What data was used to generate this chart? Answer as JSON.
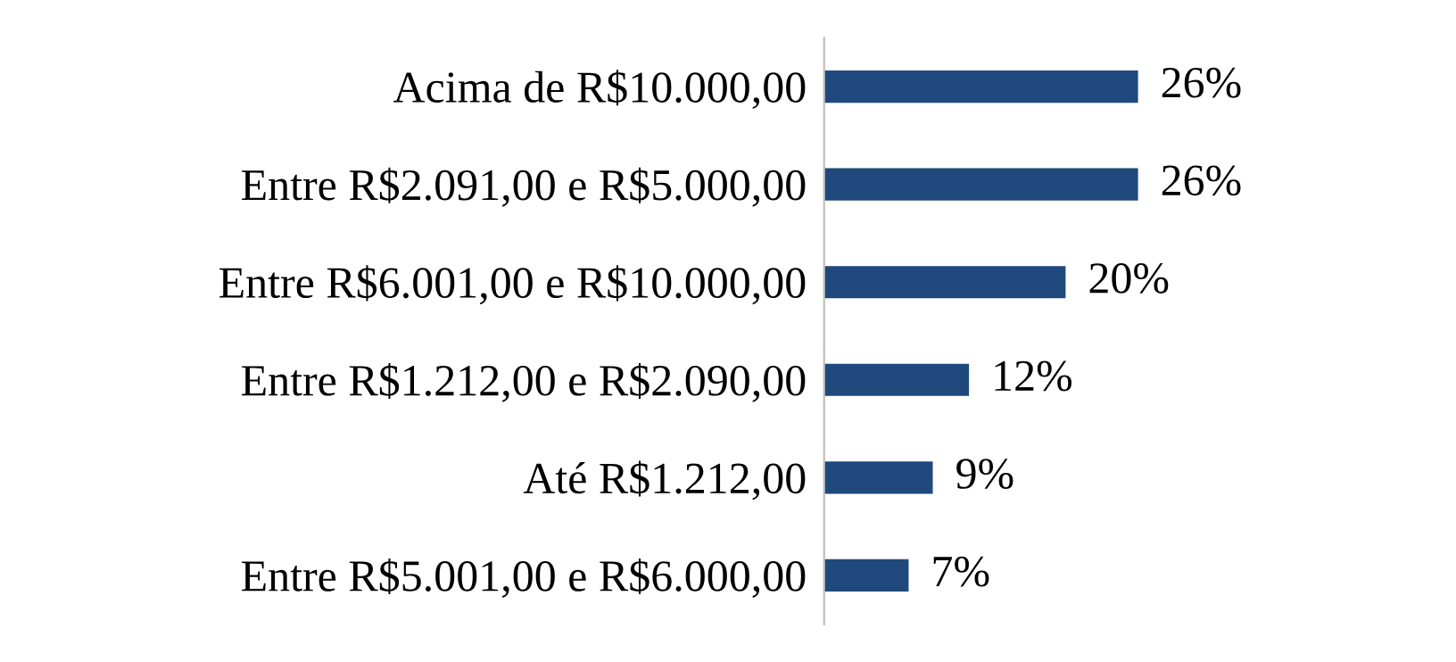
{
  "chart_data": {
    "type": "bar",
    "orientation": "horizontal",
    "categories": [
      "Acima de R$10.000,00",
      "Entre R$2.091,00 e R$5.000,00",
      "Entre R$6.001,00 e R$10.000,00",
      "Entre R$1.212,00 e R$2.090,00",
      "Até R$1.212,00",
      "Entre R$5.001,00 e R$6.000,00"
    ],
    "values": [
      26,
      26,
      20,
      12,
      9,
      7
    ],
    "value_labels": [
      "26%",
      "26%",
      "20%",
      "12%",
      "9%",
      "7%"
    ],
    "color": "#1f497d",
    "grid": false,
    "legend": false,
    "tick_labels": "y"
  }
}
